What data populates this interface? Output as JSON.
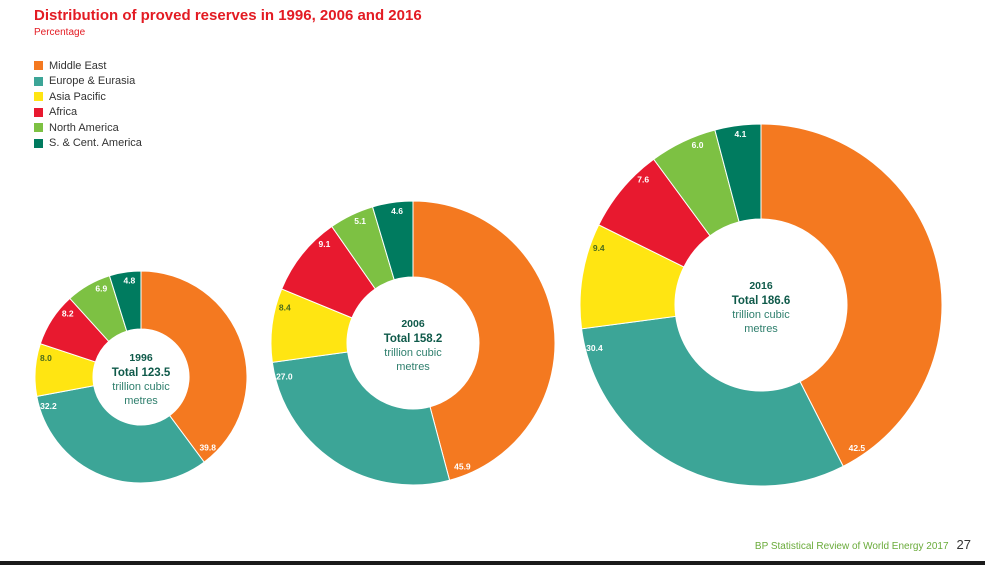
{
  "chart_data": {
    "type": "pie",
    "title": "Distribution of proved reserves in 1996, 2006 and 2016",
    "subtitle": "Percentage",
    "legend": [
      {
        "name": "Middle East",
        "color": "#f47920"
      },
      {
        "name": "Europe & Eurasia",
        "color": "#3ca597"
      },
      {
        "name": "Asia Pacific",
        "color": "#ffe512"
      },
      {
        "name": "Africa",
        "color": "#e8192f"
      },
      {
        "name": "North America",
        "color": "#7dc143"
      },
      {
        "name": "S. & Cent. America",
        "color": "#007b5f"
      }
    ],
    "charts": [
      {
        "year": "1996",
        "total_label": "Total 123.5",
        "unit_line1": "trillion cubic",
        "unit_line2": "metres",
        "values": [
          39.8,
          32.2,
          8.0,
          8.2,
          6.9,
          4.8
        ],
        "labels": [
          "39.8",
          "32.2",
          "8.0",
          "8.2",
          "6.9",
          "4.8"
        ]
      },
      {
        "year": "2006",
        "total_label": "Total 158.2",
        "unit_line1": "trillion cubic",
        "unit_line2": "metres",
        "values": [
          45.9,
          27.0,
          8.4,
          9.1,
          5.1,
          4.6
        ],
        "labels": [
          "45.9",
          "27.0",
          "8.4",
          "9.1",
          "5.1",
          "4.6"
        ]
      },
      {
        "year": "2016",
        "total_label": "Total 186.6",
        "unit_line1": "trillion cubic",
        "unit_line2": "metres",
        "values": [
          42.5,
          30.4,
          9.4,
          7.6,
          6.0,
          4.1
        ],
        "labels": [
          "42.5",
          "30.4",
          "9.4",
          "7.6",
          "6.0",
          "4.1"
        ]
      }
    ]
  },
  "footer": {
    "publication": "BP Statistical Review of World Energy 2017",
    "page_number": "27"
  }
}
